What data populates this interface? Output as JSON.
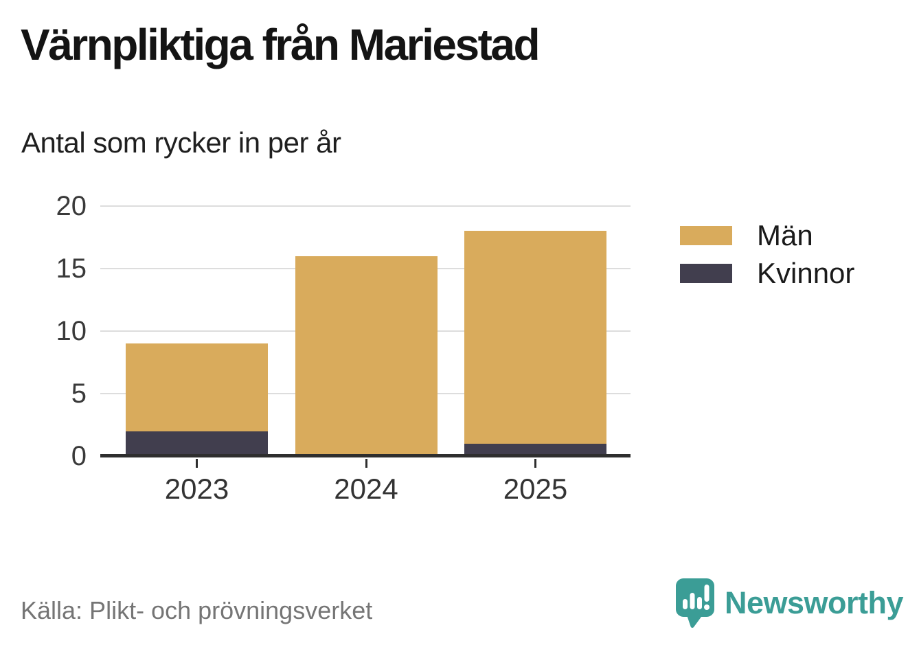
{
  "header": {
    "title": "Värnpliktiga från Mariestad",
    "subtitle": "Antal som rycker in per år"
  },
  "chart_data": {
    "type": "bar",
    "stacked": true,
    "title": "Värnpliktiga från Mariestad",
    "subtitle": "Antal som rycker in per år",
    "categories": [
      "2023",
      "2024",
      "2025"
    ],
    "series": [
      {
        "name": "Män",
        "color": "#d9ab5c",
        "values": [
          7,
          16,
          17
        ]
      },
      {
        "name": "Kvinnor",
        "color": "#413e4e",
        "values": [
          2,
          0,
          1
        ]
      }
    ],
    "stack_totals": [
      9,
      16,
      18
    ],
    "xlabel": "",
    "ylabel": "",
    "ylim": [
      0,
      20
    ],
    "yticks": [
      0,
      5,
      10,
      15,
      20
    ],
    "grid": true,
    "gridline_color": "#dddddd",
    "axis_color": "#2e2e2e",
    "legend_position": "right"
  },
  "footer": {
    "source": "Källa: Plikt- och prövningsverket",
    "brand": "Newsworthy",
    "brand_color": "#3b9d96"
  }
}
